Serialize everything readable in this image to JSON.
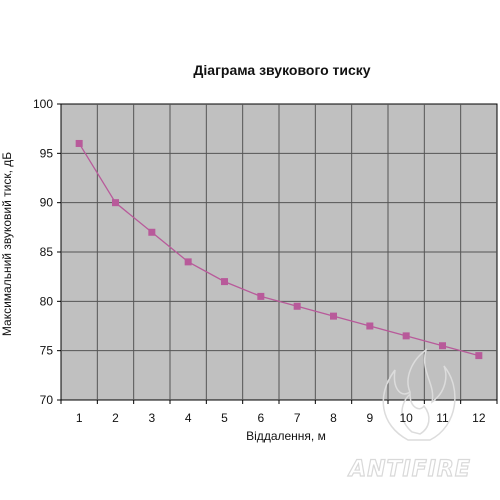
{
  "chart_data": {
    "type": "line",
    "title": "Діаграма звукового тиску",
    "xlabel": "Віддалення, м",
    "ylabel": "Максимальний звуковий тиск, дБ",
    "x": [
      1,
      2,
      3,
      4,
      5,
      6,
      7,
      8,
      9,
      10,
      11,
      12
    ],
    "y_ticks": [
      70,
      75,
      80,
      85,
      90,
      95,
      100
    ],
    "ylim": [
      70,
      100
    ],
    "grid": true,
    "legend": "none",
    "series": [
      {
        "values": [
          96,
          90,
          87,
          84,
          82,
          80.5,
          79.5,
          78.5,
          77.5,
          76.5,
          75.5,
          74.5
        ],
        "color": "#b85a9a",
        "marker": "square"
      }
    ],
    "plot_background": "#c0c0c0",
    "grid_color": "#555555"
  },
  "watermark": {
    "text": "ANTIFIRE",
    "icon": "flame-logo-icon"
  }
}
